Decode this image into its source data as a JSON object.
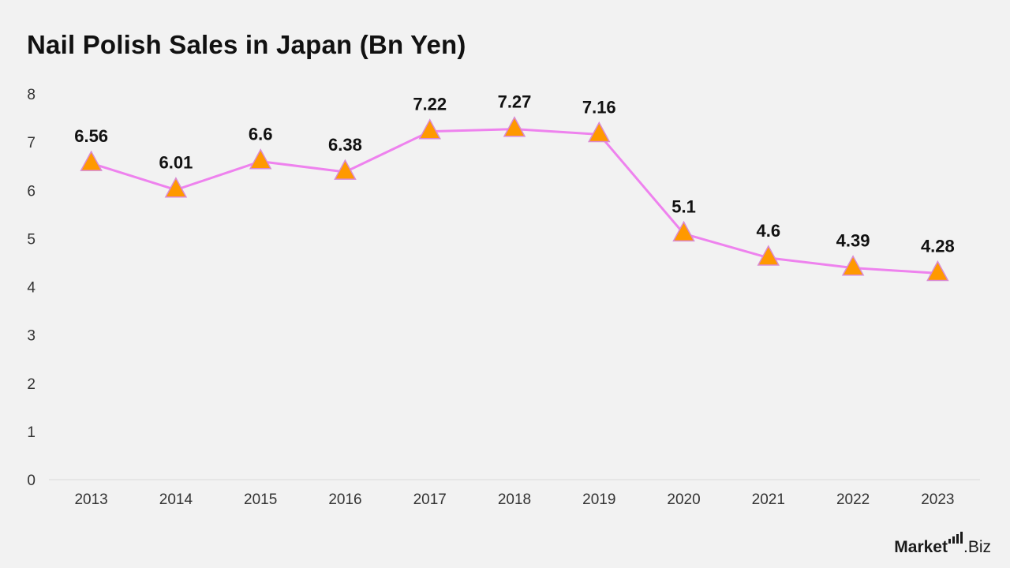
{
  "title": "Nail Polish Sales in Japan (Bn Yen)",
  "brand": {
    "name_main": "Market",
    "name_sub": ".Biz"
  },
  "colors": {
    "line": "#ee82ee",
    "marker": "#ff9900",
    "marker_edge": "#d98ad2",
    "axis": "#d9d9d9"
  },
  "chart_data": {
    "type": "line",
    "title": "Nail Polish Sales in Japan (Bn Yen)",
    "categories": [
      "2013",
      "2014",
      "2015",
      "2016",
      "2017",
      "2018",
      "2019",
      "2020",
      "2021",
      "2022",
      "2023"
    ],
    "values": [
      6.56,
      6.01,
      6.6,
      6.38,
      7.22,
      7.27,
      7.16,
      5.1,
      4.6,
      4.39,
      4.28
    ],
    "data_labels": [
      "6.56",
      "6.01",
      "6.6",
      "6.38",
      "7.22",
      "7.27",
      "7.16",
      "5.1",
      "4.6",
      "4.39",
      "4.28"
    ],
    "y_ticks": [
      "0",
      "1",
      "2",
      "3",
      "4",
      "5",
      "6",
      "7",
      "8"
    ],
    "ylim": [
      0,
      8
    ],
    "marker": "triangle",
    "grid": false,
    "legend": "none",
    "xlabel": "",
    "ylabel": ""
  }
}
